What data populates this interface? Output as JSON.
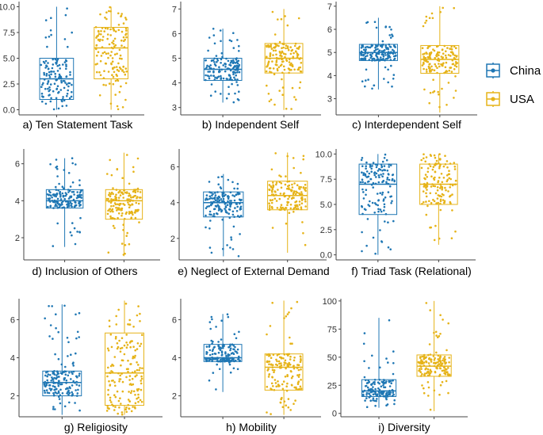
{
  "figure": {
    "groups": [
      "China",
      "USA"
    ],
    "colors": {
      "China": "#1f77b4",
      "USA": "#e6b318",
      "axis": "#444444",
      "tick_text": "#333333"
    }
  },
  "legend": {
    "items": [
      {
        "name": "China",
        "color": "#1f77b4",
        "icon": "boxplot-key-icon"
      },
      {
        "name": "USA",
        "color": "#e6b318",
        "icon": "boxplot-key-icon"
      }
    ]
  },
  "chart_data": [
    {
      "id": "a",
      "type": "box",
      "title": "a) Ten Statement Task",
      "categories": [
        "China",
        "USA"
      ],
      "ylim": [
        -0.5,
        10.5
      ],
      "yticks": [
        0,
        2.5,
        5,
        7.5,
        10
      ],
      "ytick_labels": [
        "0.0",
        "2.5",
        "5.0",
        "7.5",
        "10.0"
      ],
      "series": [
        {
          "name": "China",
          "min": 0,
          "q1": 1,
          "median": 3,
          "q3": 5,
          "max": 10,
          "n": 130
        },
        {
          "name": "USA",
          "min": 0,
          "q1": 3,
          "median": 6,
          "q3": 8,
          "max": 10,
          "n": 140
        }
      ]
    },
    {
      "id": "b",
      "type": "box",
      "title": "b) Independent Self",
      "categories": [
        "China",
        "USA"
      ],
      "ylim": [
        2.7,
        7.3
      ],
      "yticks": [
        3,
        4,
        5,
        6,
        7
      ],
      "ytick_labels": [
        "3",
        "4",
        "5",
        "6",
        "7"
      ],
      "series": [
        {
          "name": "China",
          "min": 3.2,
          "q1": 4.1,
          "median": 4.55,
          "q3": 5.0,
          "max": 6.2,
          "n": 150
        },
        {
          "name": "USA",
          "min": 2.9,
          "q1": 4.4,
          "median": 5.0,
          "q3": 5.6,
          "max": 7.0,
          "n": 150
        }
      ]
    },
    {
      "id": "c",
      "type": "box",
      "title": "c) Interdependent Self",
      "categories": [
        "China",
        "USA"
      ],
      "ylim": [
        2.3,
        7.2
      ],
      "yticks": [
        3,
        4,
        5,
        6,
        7
      ],
      "ytick_labels": [
        "3",
        "4",
        "5",
        "6",
        "7"
      ],
      "series": [
        {
          "name": "China",
          "min": 3.4,
          "q1": 4.65,
          "median": 5.0,
          "q3": 5.35,
          "max": 6.5,
          "n": 160
        },
        {
          "name": "USA",
          "min": 2.4,
          "q1": 4.1,
          "median": 4.7,
          "q3": 5.3,
          "max": 7.0,
          "n": 150
        }
      ]
    },
    {
      "id": "d",
      "type": "box",
      "title": "d) Inclusion of Others",
      "categories": [
        "China",
        "USA"
      ],
      "ylim": [
        0.8,
        6.8
      ],
      "yticks": [
        2,
        4,
        6
      ],
      "ytick_labels": [
        "2",
        "4",
        "6"
      ],
      "series": [
        {
          "name": "China",
          "min": 1.5,
          "q1": 3.6,
          "median": 4.0,
          "q3": 4.6,
          "max": 6.3,
          "n": 160
        },
        {
          "name": "USA",
          "min": 1.0,
          "q1": 3.0,
          "median": 4.0,
          "q3": 4.6,
          "max": 6.6,
          "n": 160
        }
      ]
    },
    {
      "id": "e",
      "type": "box",
      "title": "e) Neglect of External Demand",
      "categories": [
        "China",
        "USA"
      ],
      "ylim": [
        0.8,
        7.0
      ],
      "yticks": [
        2,
        4,
        6
      ],
      "ytick_labels": [
        "2",
        "4",
        "6"
      ],
      "series": [
        {
          "name": "China",
          "min": 1.0,
          "q1": 3.2,
          "median": 4.0,
          "q3": 4.6,
          "max": 5.6,
          "n": 160
        },
        {
          "name": "USA",
          "min": 1.2,
          "q1": 3.6,
          "median": 4.4,
          "q3": 5.2,
          "max": 6.8,
          "n": 150
        }
      ]
    },
    {
      "id": "f",
      "type": "box",
      "title": "f) Triad Task (Relational)",
      "categories": [
        "China",
        "USA"
      ],
      "ylim": [
        -0.5,
        10.5
      ],
      "yticks": [
        0,
        2.5,
        5,
        7.5,
        10
      ],
      "ytick_labels": [
        "0.0",
        "2.5",
        "5.0",
        "7.5",
        "10.0"
      ],
      "series": [
        {
          "name": "China",
          "min": 0,
          "q1": 4,
          "median": 7,
          "q3": 9,
          "max": 10,
          "n": 140
        },
        {
          "name": "USA",
          "min": 1,
          "q1": 5,
          "median": 7,
          "q3": 9,
          "max": 10,
          "n": 140
        }
      ]
    },
    {
      "id": "g",
      "type": "box",
      "title": "g) Religiosity",
      "categories": [
        "China",
        "USA"
      ],
      "ylim": [
        0.9,
        7.1
      ],
      "yticks": [
        2,
        4,
        6
      ],
      "ytick_labels": [
        "2",
        "4",
        "6"
      ],
      "series": [
        {
          "name": "China",
          "min": 1.0,
          "q1": 2.0,
          "median": 2.7,
          "q3": 3.3,
          "max": 6.8,
          "n": 160
        },
        {
          "name": "USA",
          "min": 1.0,
          "q1": 1.5,
          "median": 3.2,
          "q3": 5.3,
          "max": 7.0,
          "n": 160
        }
      ]
    },
    {
      "id": "h",
      "type": "box",
      "title": "h) Mobility",
      "categories": [
        "China",
        "USA"
      ],
      "ylim": [
        0.9,
        7.1
      ],
      "yticks": [
        2,
        4,
        6
      ],
      "ytick_labels": [
        "2",
        "4",
        "6"
      ],
      "series": [
        {
          "name": "China",
          "min": 2.2,
          "q1": 3.8,
          "median": 4.0,
          "q3": 4.7,
          "max": 6.3,
          "n": 150
        },
        {
          "name": "USA",
          "min": 1.0,
          "q1": 2.3,
          "median": 3.5,
          "q3": 4.2,
          "max": 7.0,
          "n": 150
        }
      ]
    },
    {
      "id": "i",
      "type": "box",
      "title": "i) Diversity",
      "categories": [
        "China",
        "USA"
      ],
      "ylim": [
        -3,
        102
      ],
      "yticks": [
        0,
        25,
        50,
        75,
        100
      ],
      "ytick_labels": [
        "0",
        "25",
        "50",
        "75",
        "100"
      ],
      "series": [
        {
          "name": "China",
          "min": 5,
          "q1": 15,
          "median": 20,
          "q3": 30,
          "max": 85,
          "n": 140
        },
        {
          "name": "USA",
          "min": 2,
          "q1": 33,
          "median": 42,
          "q3": 52,
          "max": 100,
          "n": 150
        }
      ]
    }
  ]
}
